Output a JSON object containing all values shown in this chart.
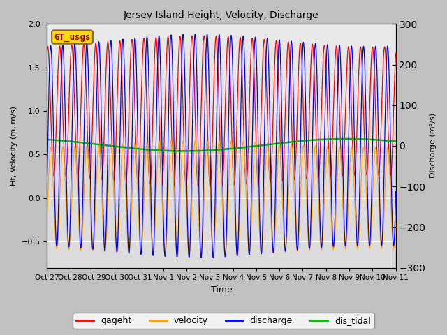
{
  "title": "Jersey Island Height, Velocity, Discharge",
  "ylabel_left": "Ht, Velocity (m, m/s)",
  "ylabel_right": "Discharge (m³/s)",
  "xlabel": "Time",
  "ylim_left": [
    -0.8,
    2.0
  ],
  "ylim_right": [
    -300,
    300
  ],
  "legend_label": "GT_usgs",
  "series_colors": {
    "gageht": "#ff0000",
    "velocity": "#ffa500",
    "discharge": "#0000ff",
    "dis_tidal": "#00bb00"
  },
  "fig_bg_color": "#c0c0c0",
  "plot_bg_color": "#dcdcdc",
  "plot_bg_upper": "#e8e8e8",
  "xtick_labels": [
    "Oct 27",
    "Oct 28",
    "Oct 29",
    "Oct 30",
    "Oct 31",
    "Nov 1",
    "Nov 2",
    "Nov 3",
    "Nov 4",
    "Nov 5",
    "Nov 6",
    "Nov 7",
    "Nov 8",
    "Nov 9",
    "Nov 10",
    "Nov 11"
  ],
  "n_days": 15,
  "tidal_period_hours": 12.42,
  "gageht_mean": 1.0,
  "gageht_base_amp": 0.8,
  "gageht_spring_amp": 0.08,
  "gageht_spring_period_days": 14.77,
  "velocity_base_amp": 0.62,
  "velocity_spring_amp": 0.04,
  "discharge_base_amp": 260,
  "discharge_spring_amp": 15,
  "dis_tidal_mean": 0.61,
  "dis_tidal_slow_amp": 0.07,
  "dis_tidal_slow_period_days": 14.0,
  "dis_tidal_slow_phase": 0.0
}
